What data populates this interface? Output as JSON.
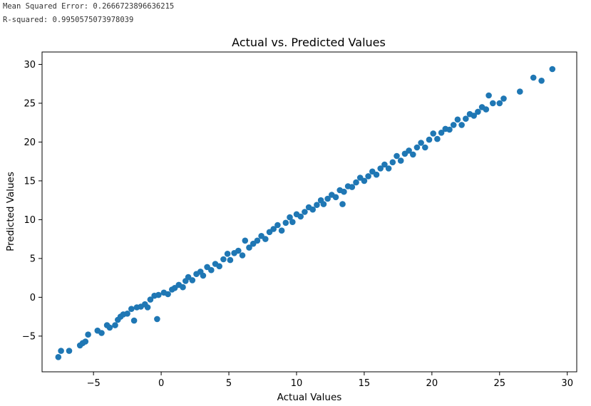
{
  "output": {
    "mse_text": "Mean Squared Error: 0.2666723896636215",
    "r2_text": "R-squared: 0.9950575073978039"
  },
  "chart_data": {
    "type": "scatter",
    "title": "Actual vs. Predicted Values",
    "xlabel": "Actual Values",
    "ylabel": "Predicted Values",
    "xlim": [
      -8.8,
      30.7
    ],
    "ylim": [
      -9.6,
      31.6
    ],
    "xticks": [
      -5,
      0,
      5,
      10,
      15,
      20,
      25,
      30
    ],
    "yticks": [
      -5,
      0,
      5,
      10,
      15,
      20,
      25,
      30
    ],
    "xtick_labels": [
      "−5",
      "0",
      "5",
      "10",
      "15",
      "20",
      "25",
      "30"
    ],
    "ytick_labels": [
      "−5",
      "0",
      "5",
      "10",
      "15",
      "20",
      "25",
      "30"
    ],
    "grid": false,
    "marker_color": "#1f77b4",
    "points": [
      [
        -7.6,
        -7.7
      ],
      [
        -7.4,
        -6.9
      ],
      [
        -6.8,
        -6.9
      ],
      [
        -6.0,
        -6.2
      ],
      [
        -5.8,
        -5.9
      ],
      [
        -5.6,
        -5.7
      ],
      [
        -5.4,
        -4.8
      ],
      [
        -4.7,
        -4.3
      ],
      [
        -4.4,
        -4.6
      ],
      [
        -4.0,
        -3.6
      ],
      [
        -3.8,
        -3.9
      ],
      [
        -3.4,
        -3.6
      ],
      [
        -3.2,
        -2.9
      ],
      [
        -3.0,
        -2.5
      ],
      [
        -2.8,
        -2.2
      ],
      [
        -2.5,
        -2.1
      ],
      [
        -2.2,
        -1.5
      ],
      [
        -2.0,
        -3.0
      ],
      [
        -1.8,
        -1.3
      ],
      [
        -1.5,
        -1.2
      ],
      [
        -1.2,
        -0.9
      ],
      [
        -1.0,
        -1.3
      ],
      [
        -0.8,
        -0.3
      ],
      [
        -0.5,
        0.2
      ],
      [
        -0.3,
        -2.8
      ],
      [
        -0.2,
        0.3
      ],
      [
        0.2,
        0.6
      ],
      [
        0.5,
        0.4
      ],
      [
        0.8,
        1.0
      ],
      [
        1.0,
        1.2
      ],
      [
        1.3,
        1.6
      ],
      [
        1.6,
        1.3
      ],
      [
        1.8,
        2.1
      ],
      [
        2.0,
        2.6
      ],
      [
        2.3,
        2.2
      ],
      [
        2.6,
        3.0
      ],
      [
        2.9,
        3.3
      ],
      [
        3.1,
        2.8
      ],
      [
        3.4,
        3.9
      ],
      [
        3.7,
        3.5
      ],
      [
        4.0,
        4.3
      ],
      [
        4.3,
        4.0
      ],
      [
        4.6,
        4.9
      ],
      [
        4.9,
        5.6
      ],
      [
        5.1,
        4.8
      ],
      [
        5.4,
        5.7
      ],
      [
        5.7,
        6.0
      ],
      [
        6.0,
        5.4
      ],
      [
        6.2,
        7.3
      ],
      [
        6.5,
        6.4
      ],
      [
        6.8,
        6.9
      ],
      [
        7.1,
        7.3
      ],
      [
        7.4,
        7.9
      ],
      [
        7.7,
        7.5
      ],
      [
        8.0,
        8.4
      ],
      [
        8.3,
        8.8
      ],
      [
        8.6,
        9.3
      ],
      [
        8.9,
        8.6
      ],
      [
        9.2,
        9.6
      ],
      [
        9.5,
        10.3
      ],
      [
        9.7,
        9.7
      ],
      [
        10.0,
        10.7
      ],
      [
        10.3,
        10.4
      ],
      [
        10.6,
        11.0
      ],
      [
        10.9,
        11.6
      ],
      [
        11.2,
        11.3
      ],
      [
        11.5,
        11.9
      ],
      [
        11.8,
        12.5
      ],
      [
        12.0,
        12.0
      ],
      [
        12.3,
        12.7
      ],
      [
        12.6,
        13.2
      ],
      [
        12.9,
        12.9
      ],
      [
        13.2,
        13.8
      ],
      [
        13.4,
        12.0
      ],
      [
        13.5,
        13.6
      ],
      [
        13.8,
        14.3
      ],
      [
        14.1,
        14.2
      ],
      [
        14.4,
        14.8
      ],
      [
        14.7,
        15.4
      ],
      [
        15.0,
        15.0
      ],
      [
        15.3,
        15.6
      ],
      [
        15.6,
        16.2
      ],
      [
        15.9,
        15.8
      ],
      [
        16.2,
        16.6
      ],
      [
        16.5,
        17.1
      ],
      [
        16.8,
        16.6
      ],
      [
        17.1,
        17.4
      ],
      [
        17.4,
        18.2
      ],
      [
        17.7,
        17.6
      ],
      [
        18.0,
        18.5
      ],
      [
        18.3,
        18.9
      ],
      [
        18.6,
        18.4
      ],
      [
        18.9,
        19.3
      ],
      [
        19.2,
        19.9
      ],
      [
        19.5,
        19.3
      ],
      [
        19.8,
        20.3
      ],
      [
        20.1,
        21.1
      ],
      [
        20.4,
        20.4
      ],
      [
        20.7,
        21.2
      ],
      [
        21.0,
        21.7
      ],
      [
        21.3,
        21.6
      ],
      [
        21.6,
        22.2
      ],
      [
        21.9,
        22.9
      ],
      [
        22.2,
        22.2
      ],
      [
        22.5,
        23.0
      ],
      [
        22.8,
        23.6
      ],
      [
        23.1,
        23.4
      ],
      [
        23.4,
        23.9
      ],
      [
        23.7,
        24.5
      ],
      [
        24.0,
        24.2
      ],
      [
        24.2,
        26.0
      ],
      [
        24.5,
        25.0
      ],
      [
        25.0,
        25.0
      ],
      [
        25.3,
        25.6
      ],
      [
        26.5,
        26.5
      ],
      [
        27.5,
        28.3
      ],
      [
        28.1,
        27.9
      ],
      [
        28.9,
        29.4
      ]
    ]
  }
}
